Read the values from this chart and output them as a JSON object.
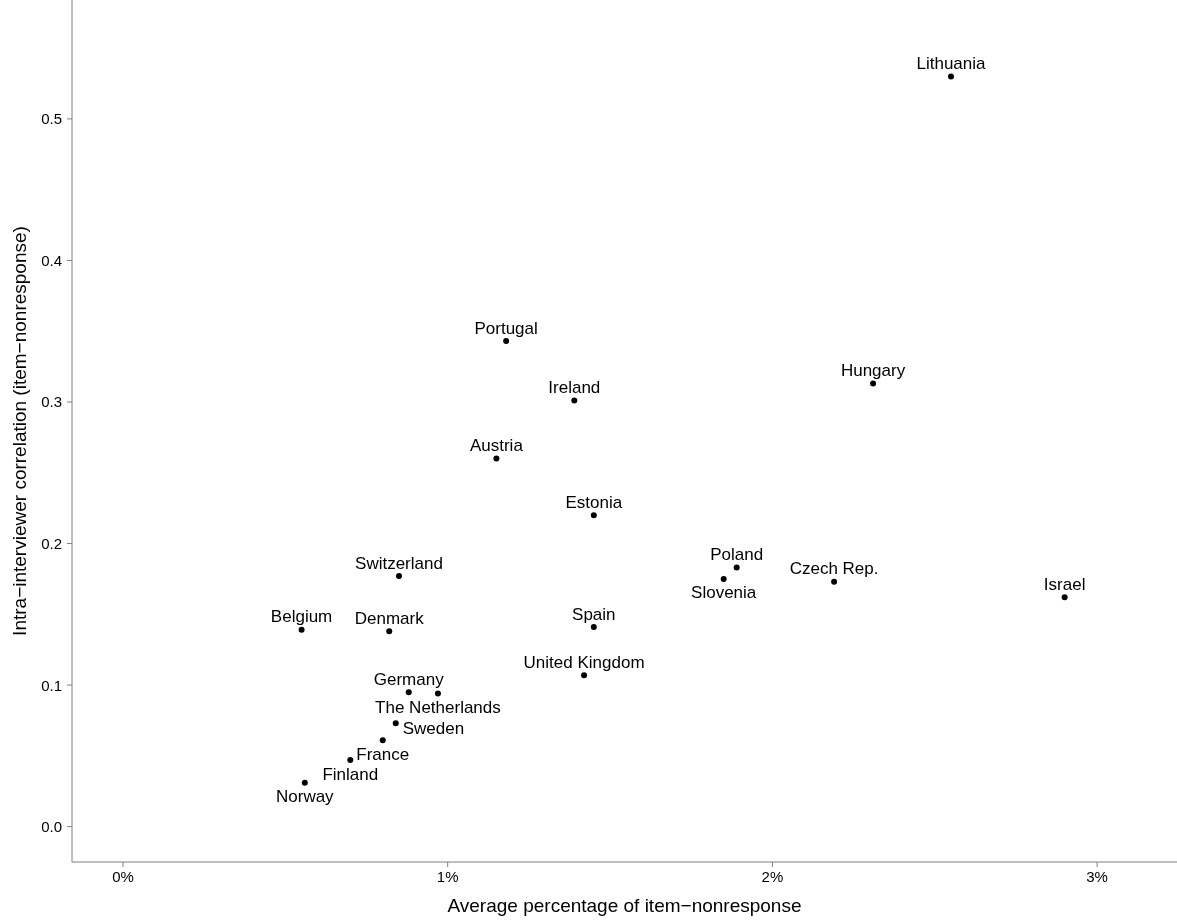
{
  "chart_data": {
    "type": "scatter",
    "xlabel": "Average percentage of item−nonresponse",
    "ylabel": "Intra−interviewer correlation (item−nonresponse)",
    "xlim": [
      -0.157,
      3.246
    ],
    "ylim": [
      -0.025,
      0.584
    ],
    "xticks": [
      {
        "value": 0,
        "label": "0%"
      },
      {
        "value": 1,
        "label": "1%"
      },
      {
        "value": 2,
        "label": "2%"
      },
      {
        "value": 3,
        "label": "3%"
      }
    ],
    "yticks": [
      {
        "value": 0,
        "label": "0.0"
      },
      {
        "value": 0.1,
        "label": "0.1"
      },
      {
        "value": 0.2,
        "label": "0.2"
      },
      {
        "value": 0.3,
        "label": "0.3"
      },
      {
        "value": 0.4,
        "label": "0.4"
      },
      {
        "value": 0.5,
        "label": "0.5"
      }
    ],
    "grid": false,
    "marker": "circle",
    "series": [
      {
        "name": "Lithuania",
        "color": "#000000",
        "x": [
          2.55
        ],
        "values": [
          0.53
        ]
      },
      {
        "name": "Portugal",
        "color": "#000000",
        "x": [
          1.18
        ],
        "values": [
          0.343
        ]
      },
      {
        "name": "Hungary",
        "color": "#000000",
        "x": [
          2.31
        ],
        "values": [
          0.313
        ]
      },
      {
        "name": "Ireland",
        "color": "#000000",
        "x": [
          1.39
        ],
        "values": [
          0.301
        ]
      },
      {
        "name": "Austria",
        "color": "#000000",
        "x": [
          1.15
        ],
        "values": [
          0.26
        ]
      },
      {
        "name": "Estonia",
        "color": "#000000",
        "x": [
          1.45
        ],
        "values": [
          0.22
        ]
      },
      {
        "name": "Poland",
        "color": "#000000",
        "x": [
          1.89
        ],
        "values": [
          0.183
        ]
      },
      {
        "name": "Slovenia",
        "color": "#000000",
        "x": [
          1.85
        ],
        "values": [
          0.175
        ]
      },
      {
        "name": "Czech Rep.",
        "color": "#000000",
        "x": [
          2.19
        ],
        "values": [
          0.173
        ]
      },
      {
        "name": "Israel",
        "color": "#000000",
        "x": [
          2.9
        ],
        "values": [
          0.162
        ]
      },
      {
        "name": "Switzerland",
        "color": "#000000",
        "x": [
          0.85
        ],
        "values": [
          0.177
        ]
      },
      {
        "name": "Belgium",
        "color": "#000000",
        "x": [
          0.55
        ],
        "values": [
          0.139
        ]
      },
      {
        "name": "Denmark",
        "color": "#000000",
        "x": [
          0.82
        ],
        "values": [
          0.138
        ]
      },
      {
        "name": "Spain",
        "color": "#000000",
        "x": [
          1.45
        ],
        "values": [
          0.141
        ]
      },
      {
        "name": "United Kingdom",
        "color": "#000000",
        "x": [
          1.42
        ],
        "values": [
          0.107
        ]
      },
      {
        "name": "Germany",
        "color": "#000000",
        "x": [
          0.88
        ],
        "values": [
          0.095
        ]
      },
      {
        "name": "The Netherlands",
        "color": "#000000",
        "x": [
          0.97
        ],
        "values": [
          0.094
        ]
      },
      {
        "name": "Sweden",
        "color": "#000000",
        "x": [
          0.84
        ],
        "values": [
          0.073
        ]
      },
      {
        "name": "France",
        "color": "#000000",
        "x": [
          0.8
        ],
        "values": [
          0.061
        ]
      },
      {
        "name": "Finland",
        "color": "#000000",
        "x": [
          0.7
        ],
        "values": [
          0.047
        ]
      },
      {
        "name": "Norway",
        "color": "#000000",
        "x": [
          0.56
        ],
        "values": [
          0.031
        ]
      }
    ]
  }
}
